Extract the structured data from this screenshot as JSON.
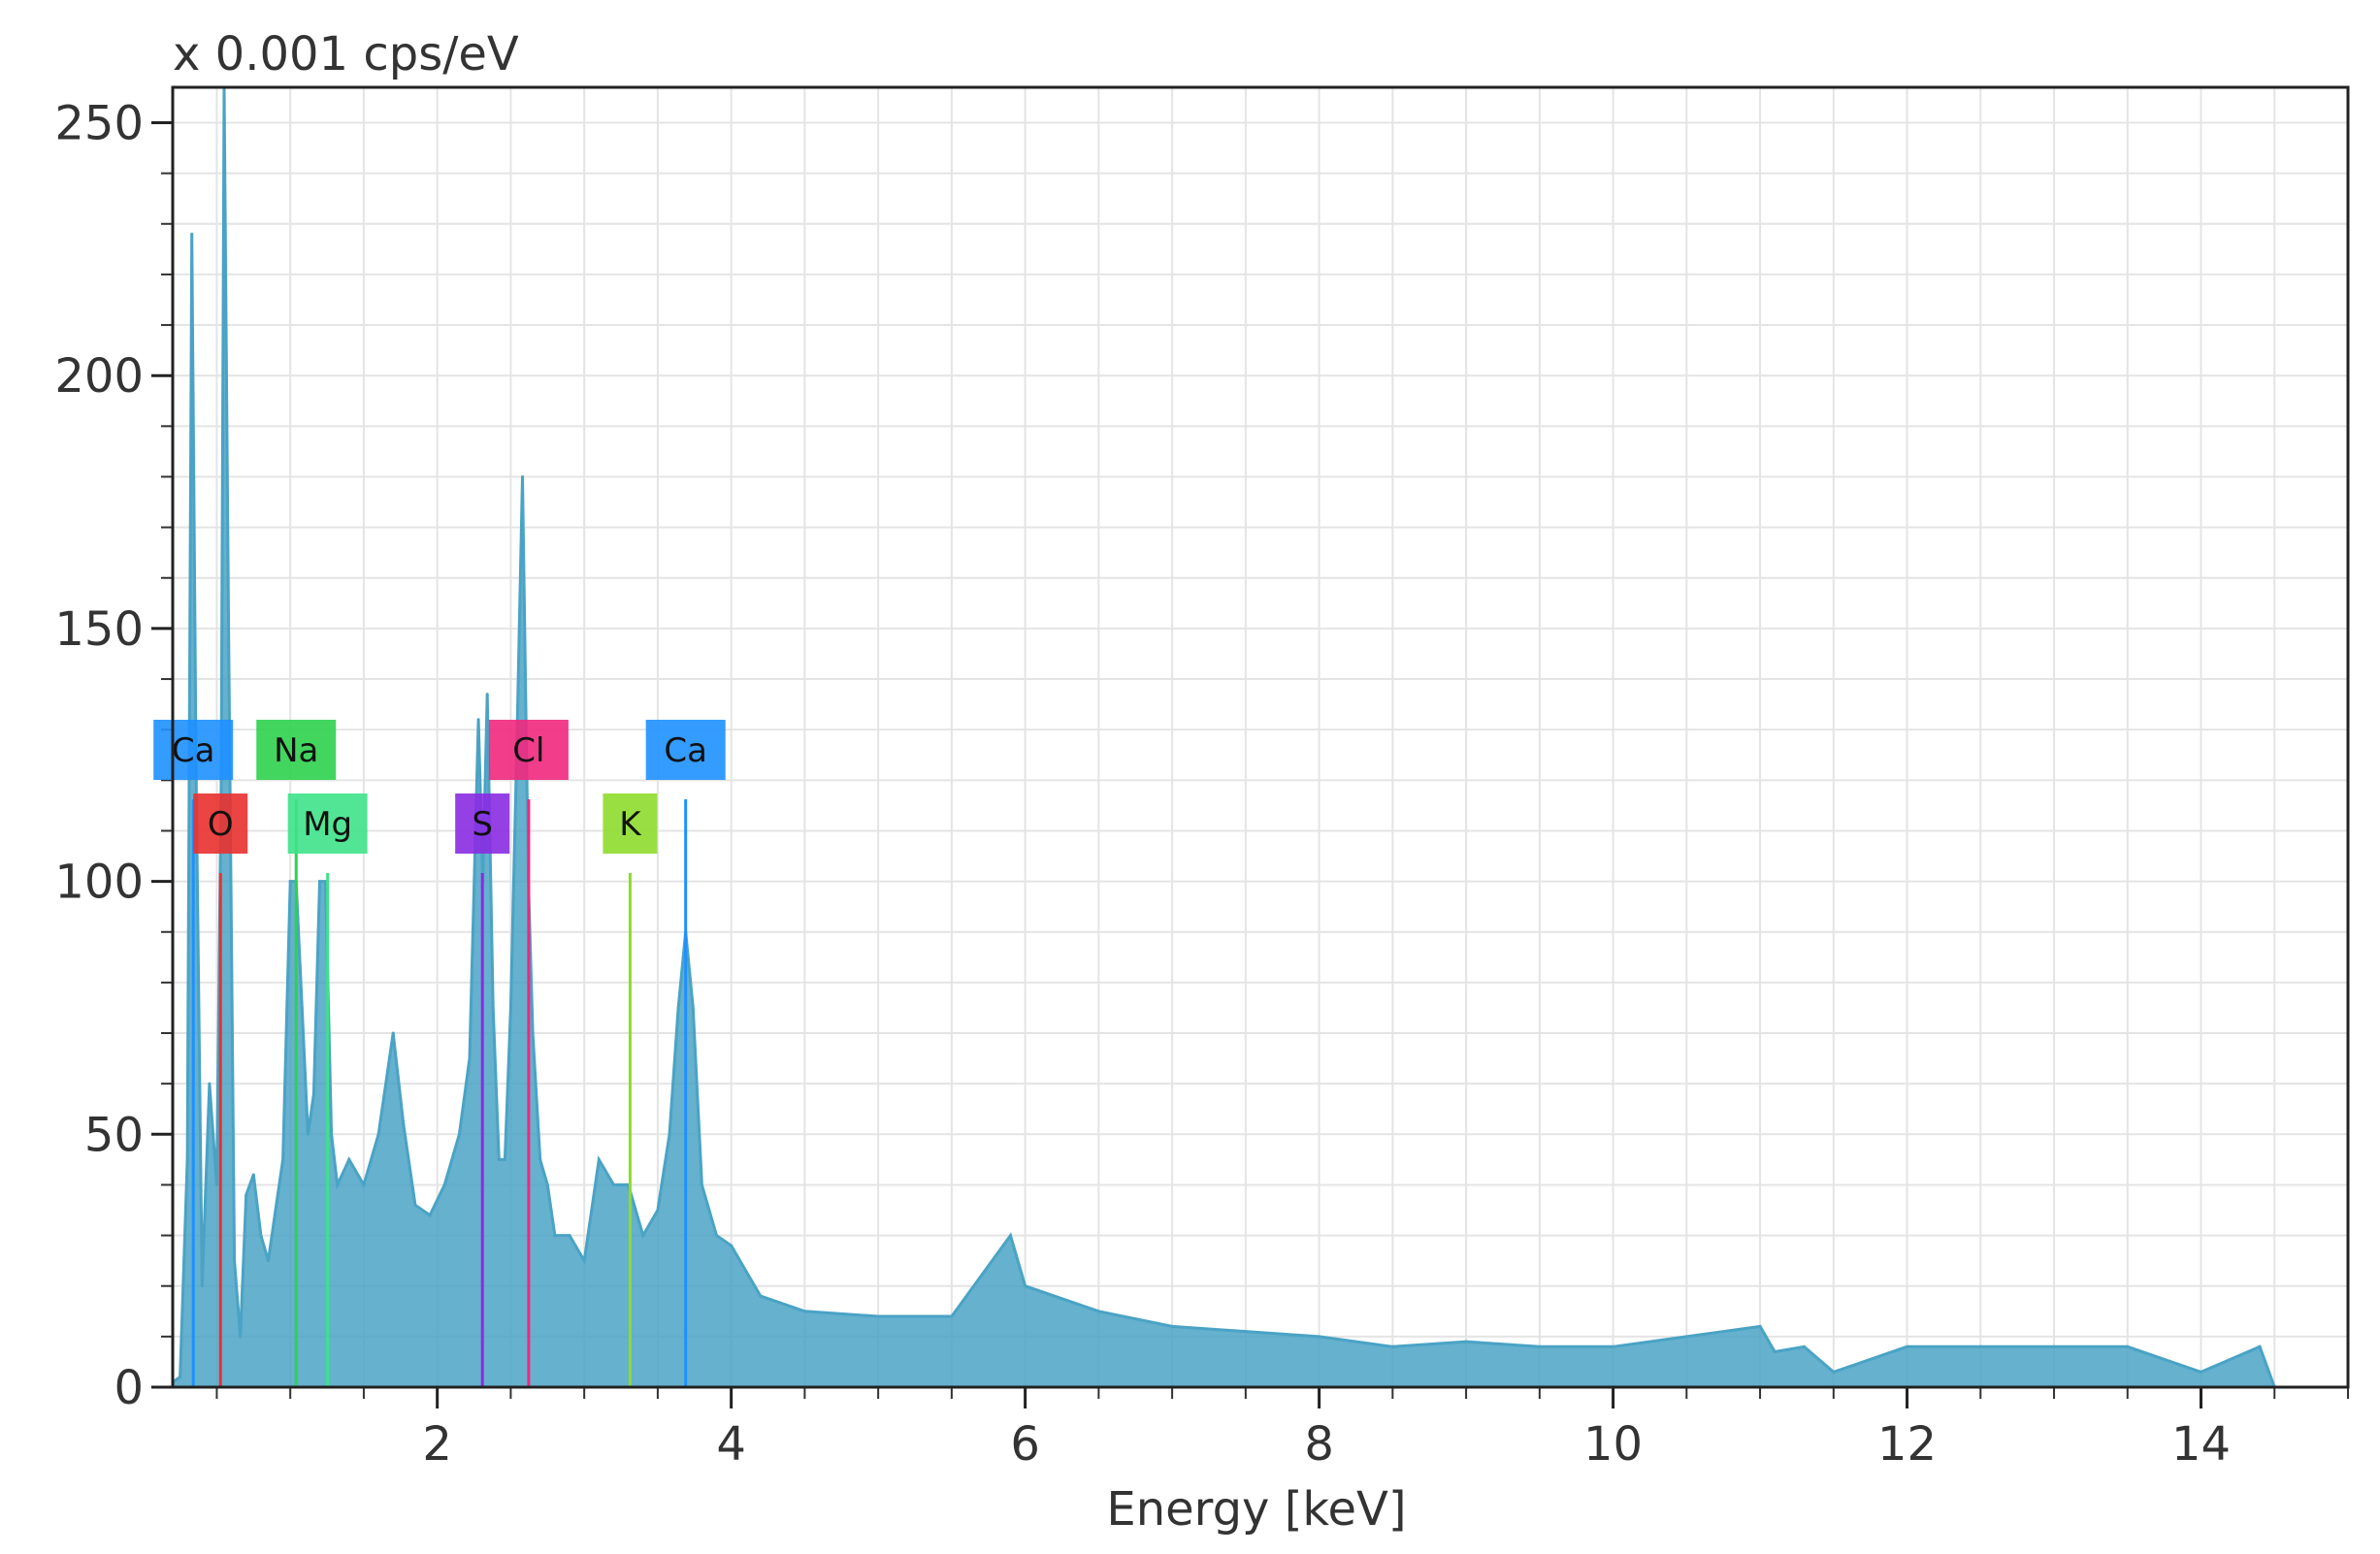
{
  "chart_data": {
    "type": "line",
    "title": "",
    "ylabel": "x 0.001 cps/eV",
    "xlabel": "Energy [keV]",
    "xlim": [
      0.2,
      15.0
    ],
    "ylim": [
      0,
      257
    ],
    "xticks": [
      2,
      4,
      6,
      8,
      10,
      12,
      14
    ],
    "yticks": [
      0,
      50,
      100,
      150,
      200,
      250
    ],
    "grid": true,
    "series": [
      {
        "color": "#4aa3c5",
        "x": [
          0.2,
          0.25,
          0.3,
          0.33,
          0.36,
          0.4,
          0.45,
          0.5,
          0.53,
          0.55,
          0.58,
          0.62,
          0.66,
          0.7,
          0.75,
          0.8,
          0.85,
          0.9,
          0.95,
          1.0,
          1.04,
          1.08,
          1.12,
          1.16,
          1.2,
          1.24,
          1.28,
          1.32,
          1.4,
          1.5,
          1.6,
          1.7,
          1.77,
          1.85,
          1.95,
          2.05,
          2.15,
          2.22,
          2.28,
          2.31,
          2.34,
          2.38,
          2.42,
          2.46,
          2.5,
          2.54,
          2.58,
          2.62,
          2.65,
          2.7,
          2.75,
          2.8,
          2.9,
          3.0,
          3.1,
          3.2,
          3.3,
          3.4,
          3.5,
          3.58,
          3.64,
          3.69,
          3.74,
          3.8,
          3.9,
          4.0,
          4.2,
          4.5,
          5.0,
          5.5,
          5.9,
          6.0,
          6.5,
          7.0,
          7.5,
          8.0,
          8.5,
          9.0,
          9.5,
          10.0,
          10.5,
          11.0,
          11.1,
          11.3,
          11.5,
          12.0,
          12.5,
          13.0,
          13.5,
          14.0,
          14.4,
          14.5,
          15.0
        ],
        "values": [
          1,
          2,
          45,
          228,
          120,
          20,
          60,
          40,
          120,
          257,
          150,
          25,
          10,
          38,
          42,
          30,
          25,
          35,
          45,
          100,
          100,
          75,
          50,
          58,
          100,
          100,
          50,
          40,
          45,
          40,
          50,
          70,
          52,
          36,
          34,
          40,
          50,
          65,
          132,
          100,
          137,
          75,
          45,
          45,
          75,
          125,
          180,
          100,
          70,
          45,
          40,
          30,
          30,
          25,
          45,
          40,
          40,
          30,
          35,
          50,
          75,
          90,
          75,
          40,
          30,
          28,
          18,
          15,
          14,
          14,
          30,
          20,
          15,
          12,
          11,
          10,
          8,
          9,
          8,
          8,
          10,
          12,
          7,
          8,
          3,
          8,
          8,
          8,
          8,
          3,
          8,
          0,
          0
        ]
      }
    ],
    "element_labels": [
      {
        "symbol": "Ca",
        "energy": 0.34,
        "tier": 1,
        "color": "#1e90ff"
      },
      {
        "symbol": "O",
        "energy": 0.525,
        "tier": 2,
        "color": "#e8312f"
      },
      {
        "symbol": "Na",
        "energy": 1.04,
        "tier": 1,
        "color": "#2ed24d"
      },
      {
        "symbol": "Mg",
        "energy": 1.254,
        "tier": 2,
        "color": "#3ee28a"
      },
      {
        "symbol": "S",
        "energy": 2.307,
        "tier": 2,
        "color": "#8a2be2"
      },
      {
        "symbol": "Cl",
        "energy": 2.622,
        "tier": 1,
        "color": "#f0287d"
      },
      {
        "symbol": "K",
        "energy": 3.312,
        "tier": 2,
        "color": "#8edb2c"
      },
      {
        "symbol": "Ca",
        "energy": 3.69,
        "tier": 1,
        "color": "#1e90ff"
      }
    ]
  }
}
